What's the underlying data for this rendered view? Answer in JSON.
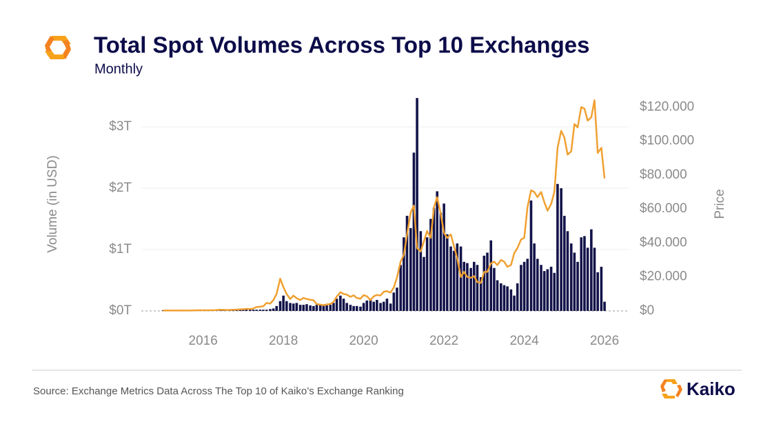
{
  "header": {
    "title": "Total Spot Volumes Across Top 10 Exchanges",
    "subtitle": "Monthly"
  },
  "chart_data": {
    "type": "bar",
    "y_label": "Volume (in USD)",
    "y2_label": "Price",
    "x": [
      2015,
      2015.08,
      2015.17,
      2015.25,
      2015.33,
      2015.42,
      2015.5,
      2015.58,
      2015.67,
      2015.75,
      2015.83,
      2015.92,
      2016,
      2016.08,
      2016.17,
      2016.25,
      2016.33,
      2016.42,
      2016.5,
      2016.58,
      2016.67,
      2016.75,
      2016.83,
      2016.92,
      2017,
      2017.08,
      2017.17,
      2017.25,
      2017.33,
      2017.42,
      2017.5,
      2017.58,
      2017.67,
      2017.75,
      2017.83,
      2017.92,
      2018,
      2018.08,
      2018.17,
      2018.25,
      2018.33,
      2018.42,
      2018.5,
      2018.58,
      2018.67,
      2018.75,
      2018.83,
      2018.92,
      2019,
      2019.08,
      2019.17,
      2019.25,
      2019.33,
      2019.42,
      2019.5,
      2019.58,
      2019.67,
      2019.75,
      2019.83,
      2019.92,
      2020,
      2020.08,
      2020.17,
      2020.25,
      2020.33,
      2020.42,
      2020.5,
      2020.58,
      2020.67,
      2020.75,
      2020.83,
      2020.92,
      2021,
      2021.08,
      2021.17,
      2021.25,
      2021.33,
      2021.42,
      2021.5,
      2021.58,
      2021.67,
      2021.75,
      2021.83,
      2021.92,
      2022,
      2022.08,
      2022.17,
      2022.25,
      2022.33,
      2022.42,
      2022.5,
      2022.58,
      2022.67,
      2022.75,
      2022.83,
      2022.92,
      2023,
      2023.08,
      2023.17,
      2023.25,
      2023.33,
      2023.42,
      2023.5,
      2023.58,
      2023.67,
      2023.75,
      2023.83,
      2023.92,
      2024,
      2024.08,
      2024.17,
      2024.25,
      2024.33,
      2024.42,
      2024.5,
      2024.58,
      2024.67,
      2024.75,
      2024.83,
      2024.92,
      2025,
      2025.08,
      2025.17,
      2025.25,
      2025.33,
      2025.42,
      2025.5,
      2025.58,
      2025.67,
      2025.75,
      2025.83,
      2025.92,
      2026
    ],
    "series": [
      {
        "type": "bar",
        "color": "#13134a",
        "values": [
          0.01,
          0.01,
          0.01,
          0.01,
          0.01,
          0.01,
          0.01,
          0.01,
          0.01,
          0.01,
          0.01,
          0.01,
          0.02,
          0.02,
          0.01,
          0.01,
          0.01,
          0.02,
          0.02,
          0.02,
          0.01,
          0.02,
          0.02,
          0.03,
          0.04,
          0.03,
          0.03,
          0.02,
          0.02,
          0.02,
          0.02,
          0.02,
          0.03,
          0.04,
          0.08,
          0.16,
          0.25,
          0.16,
          0.13,
          0.12,
          0.13,
          0.1,
          0.1,
          0.11,
          0.09,
          0.08,
          0.1,
          0.1,
          0.09,
          0.09,
          0.1,
          0.13,
          0.2,
          0.25,
          0.2,
          0.13,
          0.1,
          0.08,
          0.08,
          0.07,
          0.13,
          0.17,
          0.2,
          0.15,
          0.18,
          0.13,
          0.15,
          0.2,
          0.12,
          0.3,
          0.38,
          0.75,
          1.2,
          1.55,
          1.35,
          2.58,
          3.47,
          1.3,
          0.88,
          1.2,
          1.5,
          1.68,
          1.95,
          1.6,
          1.75,
          1.25,
          1.05,
          0.98,
          1.1,
          1.05,
          0.8,
          0.78,
          0.7,
          0.8,
          0.75,
          0.55,
          0.9,
          0.95,
          1.15,
          0.7,
          0.5,
          0.45,
          0.42,
          0.4,
          0.35,
          0.25,
          0.45,
          0.75,
          0.8,
          0.85,
          1.8,
          1.1,
          0.85,
          0.75,
          0.65,
          0.68,
          0.72,
          0.62,
          2.07,
          2.0,
          1.55,
          1.3,
          1.1,
          0.95,
          0.8,
          1.2,
          1.22,
          1.03,
          1.33,
          1.03,
          0.63,
          0.72,
          0.15
        ]
      },
      {
        "type": "line",
        "axis": "y2",
        "color": "#f0a030",
        "values": [
          250,
          250,
          260,
          230,
          240,
          250,
          280,
          230,
          235,
          300,
          350,
          430,
          400,
          430,
          420,
          450,
          530,
          700,
          640,
          580,
          610,
          700,
          740,
          960,
          1000,
          1200,
          1100,
          1400,
          2300,
          2500,
          2800,
          4700,
          4300,
          6400,
          10000,
          19000,
          14000,
          10000,
          7000,
          9000,
          7500,
          6400,
          7700,
          7000,
          6600,
          6300,
          4000,
          3700,
          3400,
          3800,
          4100,
          5300,
          8500,
          11000,
          10000,
          9600,
          8300,
          9200,
          7600,
          7200,
          9300,
          8600,
          6400,
          8600,
          9400,
          9100,
          11300,
          11600,
          10800,
          13800,
          19700,
          29000,
          33000,
          45000,
          58000,
          62000,
          37000,
          35000,
          41000,
          47000,
          43000,
          61000,
          67000,
          57000,
          46000,
          43000,
          45000,
          38000,
          31000,
          20000,
          23000,
          20000,
          19500,
          20500,
          17000,
          16500,
          23000,
          23000,
          28000,
          29000,
          27000,
          30000,
          29000,
          26000,
          27000,
          34000,
          37000,
          42000,
          43000,
          61000,
          71000,
          70000,
          67000,
          70000,
          64000,
          59000,
          63000,
          70000,
          96000,
          106000,
          102000,
          92000,
          94000,
          110000,
          108000,
          120000,
          119000,
          112000,
          114000,
          124000,
          93000,
          96000,
          78000
        ]
      }
    ],
    "xlim": [
      2014.46,
      2026.6
    ],
    "xticks": [
      2016,
      2018,
      2020,
      2022,
      2024,
      2026
    ],
    "ylim": [
      0,
      3.5
    ],
    "yticks": [
      {
        "value": 0,
        "label": "$0T"
      },
      {
        "value": 1,
        "label": "$1T"
      },
      {
        "value": 2,
        "label": "$2T"
      },
      {
        "value": 3,
        "label": "$3T"
      }
    ],
    "y2lim": [
      0,
      126400
    ],
    "y2ticks": [
      {
        "value": 0,
        "label": "$0"
      },
      {
        "value": 20000,
        "label": "$20.000"
      },
      {
        "value": 40000,
        "label": "$40.000"
      },
      {
        "value": 60000,
        "label": "$60.000"
      },
      {
        "value": 80000,
        "label": "$80.000"
      },
      {
        "value": 100000,
        "label": "$100.000"
      },
      {
        "value": 120000,
        "label": "$120.000"
      }
    ],
    "grid": true
  },
  "footer": {
    "source": "Source: Exchange Metrics Data Across The Top 10 of Kaiko’s Exchange Ranking",
    "brand": "Kaiko"
  }
}
